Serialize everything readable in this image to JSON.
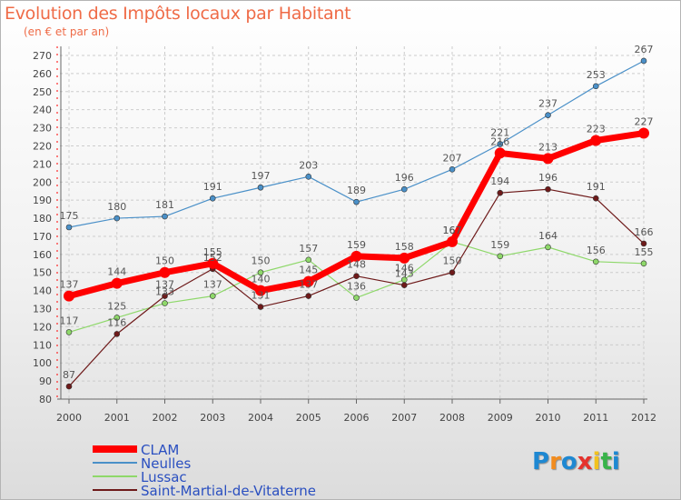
{
  "header": {
    "title": "Evolution des Impôts locaux par Habitant",
    "subtitle": "(en € et par an)"
  },
  "logo": {
    "text": "Proxiti",
    "letters": [
      "P",
      "r",
      "o",
      "x",
      "i",
      "t",
      "i"
    ],
    "colors": [
      "#1e88d2",
      "#f28c1e",
      "#1e88d2",
      "#e5322d",
      "#f2c21e",
      "#38b34a",
      "#1e88d2"
    ]
  },
  "chart_data": {
    "type": "line",
    "title": "Evolution des Impôts locaux par Habitant",
    "subtitle": "(en € et par an)",
    "x": [
      "2000",
      "2001",
      "2002",
      "2003",
      "2004",
      "2005",
      "2006",
      "2007",
      "2008",
      "2009",
      "2010",
      "2011",
      "2012"
    ],
    "ylim": [
      80,
      270
    ],
    "yticks": [
      80,
      90,
      100,
      110,
      120,
      130,
      140,
      150,
      160,
      170,
      180,
      190,
      200,
      210,
      220,
      230,
      240,
      250,
      260,
      270
    ],
    "grid": true,
    "legend_position": "bottom-left",
    "series": [
      {
        "name": "CLAM",
        "color": "#ff0000",
        "values": [
          137,
          144,
          150,
          155,
          140,
          145,
          159,
          158,
          167,
          216,
          213,
          223,
          227
        ]
      },
      {
        "name": "Neulles",
        "color": "#4a90c8",
        "values": [
          175,
          180,
          181,
          191,
          197,
          203,
          189,
          196,
          207,
          221,
          237,
          253,
          267
        ]
      },
      {
        "name": "Lussac",
        "color": "#8ed86a",
        "values": [
          117,
          125,
          133,
          137,
          150,
          157,
          136,
          146,
          167,
          159,
          164,
          156,
          155
        ]
      },
      {
        "name": "Saint-Martial-de-Vitaterne",
        "color": "#6e1a1a",
        "values": [
          87,
          116,
          137,
          152,
          131,
          137,
          148,
          143,
          150,
          194,
          196,
          191,
          166
        ]
      }
    ],
    "data_labels": {
      "CLAM": [
        "137",
        "144",
        "150",
        "155",
        "140",
        "145",
        "159",
        "158",
        "167",
        "216",
        "213",
        "223",
        "227"
      ],
      "Neulles": [
        "175",
        "180",
        "181",
        "191",
        "197",
        "203",
        "189",
        "196",
        "207",
        "221",
        "237",
        "253",
        "267"
      ],
      "Lussac": [
        "117",
        "125",
        "133",
        "137",
        "150",
        "157",
        "136",
        "146",
        "167",
        "159",
        "164",
        "156",
        "155"
      ],
      "Saint-Martial-de-Vitaterne": [
        "87",
        "116",
        "137",
        "152",
        "131",
        "137",
        "148",
        "143",
        "150",
        "194",
        "196",
        "191",
        "166"
      ]
    }
  }
}
